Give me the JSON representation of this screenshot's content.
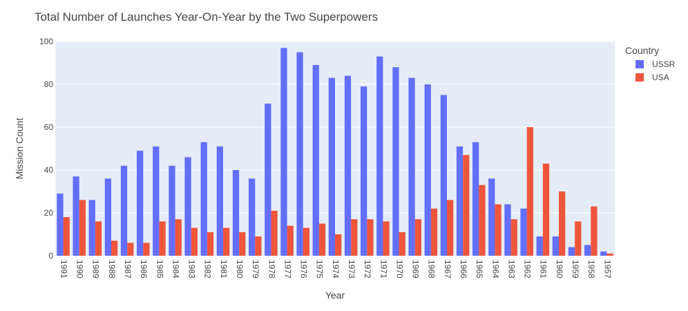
{
  "chart_data": {
    "type": "bar",
    "title": "Total Number of Launches Year-On-Year by the Two Superpowers",
    "xlabel": "Year",
    "ylabel": "Mission Count",
    "ylim": [
      0,
      100
    ],
    "yticks": [
      0,
      20,
      40,
      60,
      80,
      100
    ],
    "grid": true,
    "legend": {
      "title": "Country",
      "placement": "right"
    },
    "categories": [
      "1991",
      "1990",
      "1989",
      "1988",
      "1987",
      "1986",
      "1985",
      "1984",
      "1983",
      "1982",
      "1981",
      "1980",
      "1979",
      "1978",
      "1977",
      "1976",
      "1975",
      "1974",
      "1973",
      "1972",
      "1971",
      "1970",
      "1969",
      "1968",
      "1967",
      "1966",
      "1965",
      "1964",
      "1963",
      "1962",
      "1961",
      "1960",
      "1959",
      "1958",
      "1957"
    ],
    "series": [
      {
        "name": "USSR",
        "color": "#636efa",
        "values": [
          29,
          37,
          26,
          36,
          42,
          49,
          51,
          42,
          46,
          53,
          51,
          40,
          36,
          71,
          97,
          95,
          89,
          83,
          84,
          79,
          93,
          88,
          83,
          80,
          75,
          51,
          53,
          36,
          24,
          22,
          9,
          9,
          4,
          5,
          2
        ]
      },
      {
        "name": "USA",
        "color": "#ef553b",
        "values": [
          18,
          26,
          16,
          7,
          6,
          6,
          16,
          17,
          13,
          11,
          13,
          11,
          9,
          21,
          14,
          13,
          15,
          10,
          17,
          17,
          16,
          11,
          17,
          22,
          26,
          47,
          33,
          24,
          17,
          60,
          43,
          30,
          16,
          23,
          1
        ]
      }
    ],
    "plot_bg": "#e5ecf6"
  }
}
